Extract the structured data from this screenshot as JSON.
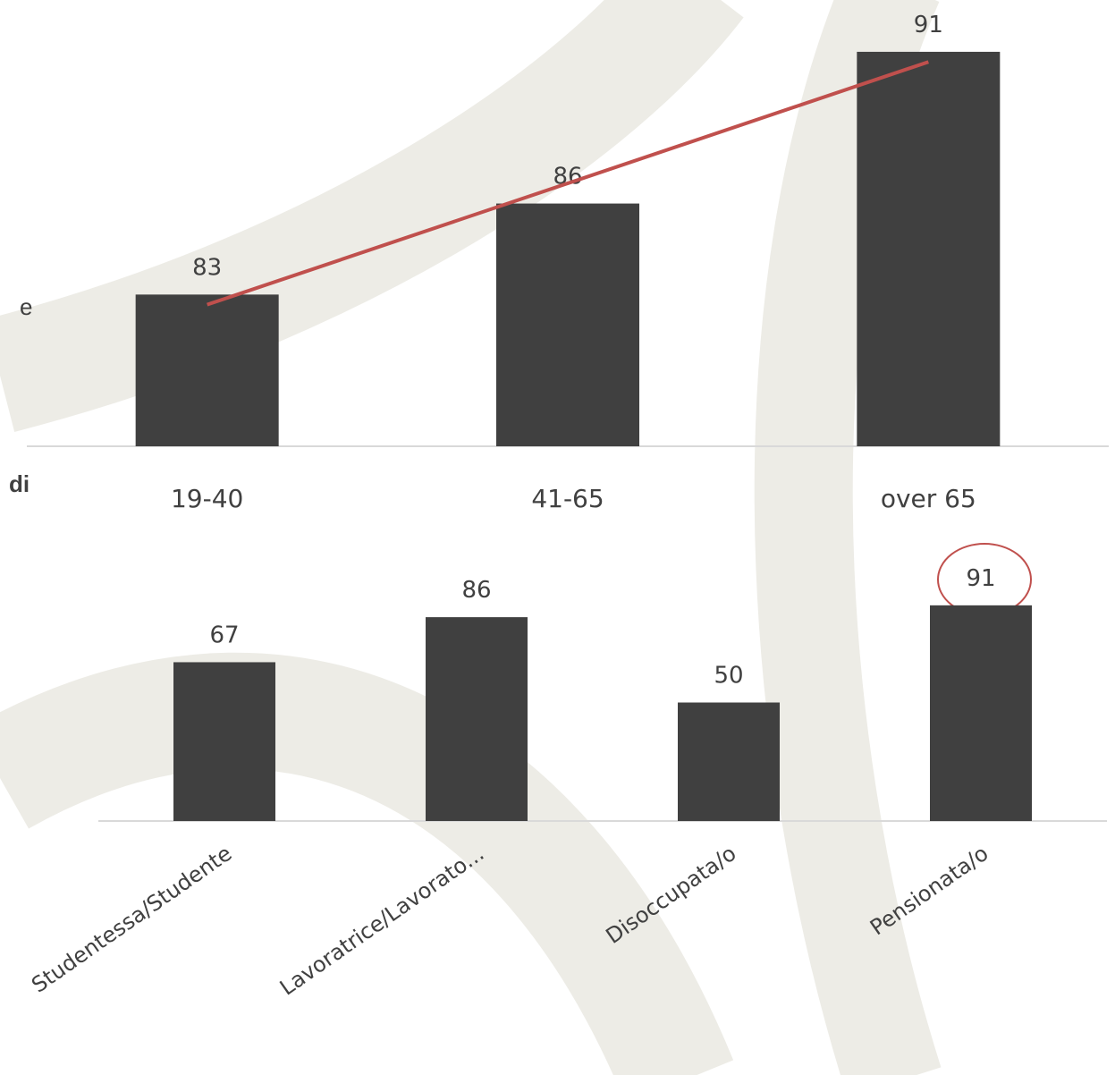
{
  "chart_data": [
    {
      "type": "bar",
      "categories": [
        "19-40",
        "41-65",
        "over 65"
      ],
      "values": [
        83,
        86,
        91
      ],
      "color": "#404040",
      "ylim": [
        78,
        92
      ],
      "trendline": {
        "color": "#c0504d"
      }
    },
    {
      "type": "bar",
      "categories": [
        "Studentessa/Studente",
        "Lavoratrice/Lavorato...",
        "Disoccupata/o",
        "Pensionata/o"
      ],
      "values": [
        67,
        86,
        50,
        91
      ],
      "color": "#404040",
      "ylim": [
        0,
        100
      ]
    }
  ],
  "fragments": [
    "e",
    "di"
  ]
}
